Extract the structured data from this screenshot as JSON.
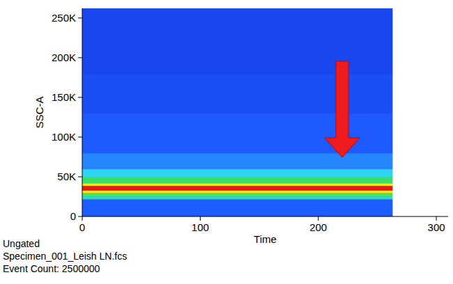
{
  "chart_data": {
    "type": "density",
    "x_label": "Time",
    "y_label": "SSC-A",
    "xlim": [
      0,
      310
    ],
    "ylim": [
      0,
      262144
    ],
    "xticks": [
      0,
      100,
      200,
      300
    ],
    "yticks": [
      0,
      {
        "value": 50000,
        "label": "50K"
      },
      {
        "value": 100000,
        "label": "100K"
      },
      {
        "value": 150000,
        "label": "150K"
      },
      {
        "value": 200000,
        "label": "200K"
      },
      {
        "value": 250000,
        "label": "250K"
      }
    ],
    "time_bins": [
      0,
      263
    ],
    "ssc_bins": [
      0,
      5000,
      22000,
      27000,
      30000,
      33000,
      39000,
      42000,
      50000,
      60000,
      80000,
      130000,
      180000,
      262144
    ],
    "density": [
      0.3,
      0.33,
      0.55,
      0.66,
      0.8,
      1.0,
      0.8,
      0.62,
      0.5,
      0.4,
      0.3,
      0.22,
      0.15
    ],
    "annotations": [
      "Ungated",
      "Specimen_001_Leish LN.fcs",
      "Event Count: 2500000"
    ]
  }
}
